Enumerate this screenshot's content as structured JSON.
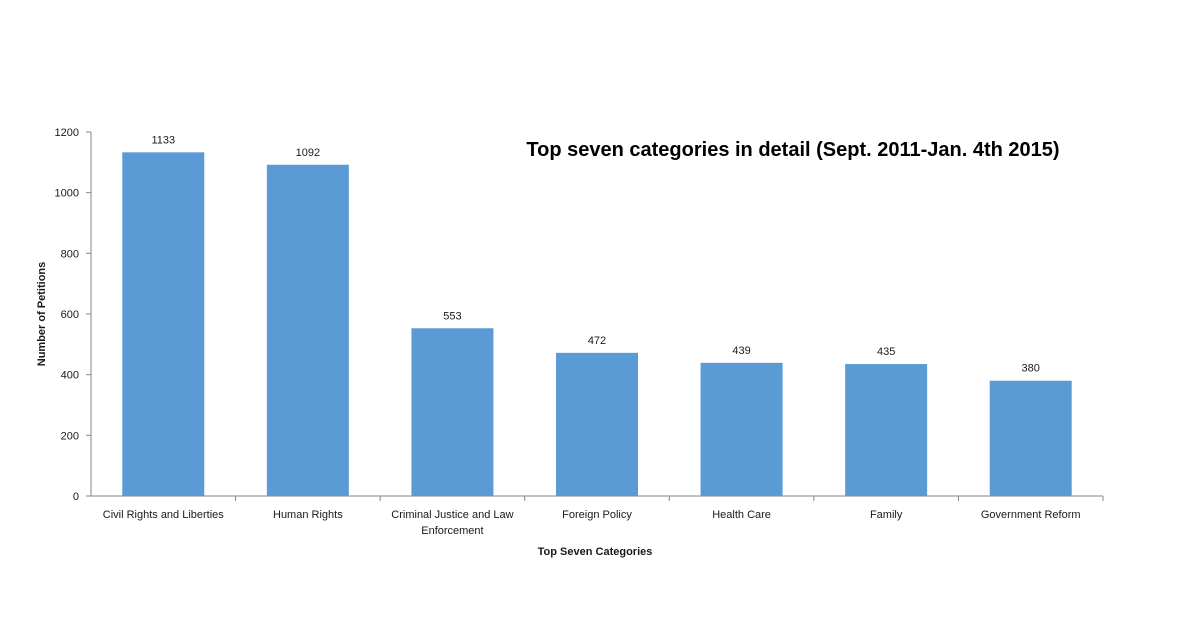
{
  "chart_data": {
    "type": "bar",
    "title": "Top seven categories in detail (Sept. 2011-Jan. 4th 2015)",
    "xlabel": "Top Seven Categories",
    "ylabel": "Number of Petitions",
    "categories": [
      "Civil Rights and Liberties",
      "Human Rights",
      "Criminal Justice and Law Enforcement",
      "Foreign Policy",
      "Health Care",
      "Family",
      "Government Reform"
    ],
    "values": [
      1133,
      1092,
      553,
      472,
      439,
      435,
      380
    ],
    "ylim": [
      0,
      1200
    ],
    "yticks": [
      0,
      200,
      400,
      600,
      800,
      1000,
      1200
    ],
    "bar_color": "#5b9bd5",
    "axis_color": "#868686",
    "grid": false,
    "legend": "none",
    "data_labels": true
  }
}
